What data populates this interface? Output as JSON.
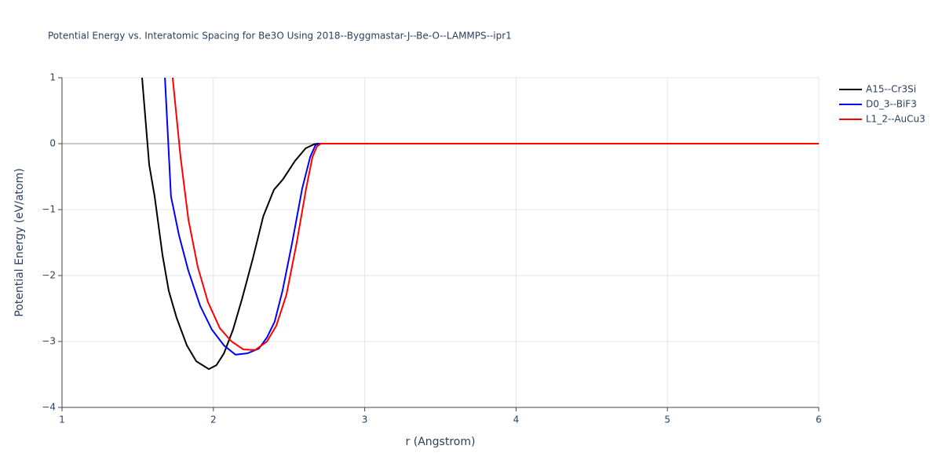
{
  "chart_data": {
    "type": "line",
    "title": "Potential Energy vs. Interatomic Spacing for Be3O Using 2018--Byggmastar-J--Be-O--LAMMPS--ipr1",
    "x_label": "r (Angstrom)",
    "y_label": "Potential Energy (eV/atom)",
    "xlim": [
      1,
      6
    ],
    "ylim": [
      -4,
      1
    ],
    "xticks": [
      1,
      2,
      3,
      4,
      5,
      6
    ],
    "yticks": [
      {
        "value": -4,
        "label": "−4"
      },
      {
        "value": -3,
        "label": "−3"
      },
      {
        "value": -2,
        "label": "−2"
      },
      {
        "value": -1,
        "label": "−1"
      },
      0,
      1
    ],
    "grid": true,
    "legend": "right",
    "series": [
      {
        "name": "A15--Cr3Si",
        "color": "#000000",
        "x": [
          1.529,
          1.576,
          1.612,
          1.664,
          1.705,
          1.757,
          1.825,
          1.887,
          1.97,
          2.02,
          2.07,
          2.13,
          2.19,
          2.26,
          2.33,
          2.4,
          2.46,
          2.54,
          2.61,
          2.665,
          2.69,
          3,
          4,
          5,
          6
        ],
        "values": [
          1.0,
          -0.32,
          -0.8,
          -1.69,
          -2.23,
          -2.64,
          -3.06,
          -3.3,
          -3.42,
          -3.36,
          -3.18,
          -2.82,
          -2.35,
          -1.75,
          -1.1,
          -0.7,
          -0.54,
          -0.26,
          -0.07,
          -0.01,
          0,
          0,
          0,
          0,
          0
        ]
      },
      {
        "name": "D0_3--BiF3",
        "color": "#0000ff",
        "x": [
          1.68,
          1.72,
          1.773,
          1.835,
          1.913,
          1.99,
          2.07,
          2.146,
          2.224,
          2.3,
          2.354,
          2.405,
          2.457,
          2.52,
          2.587,
          2.64,
          2.675,
          2.7,
          3,
          4,
          5,
          6
        ],
        "values": [
          1.0,
          -0.8,
          -1.39,
          -1.93,
          -2.46,
          -2.82,
          -3.06,
          -3.2,
          -3.18,
          -3.11,
          -2.94,
          -2.7,
          -2.23,
          -1.51,
          -0.68,
          -0.2,
          -0.02,
          0,
          0,
          0,
          0,
          0
        ]
      },
      {
        "name": "L1_2--AuCu3",
        "color": "#ff0000",
        "x": [
          1.731,
          1.783,
          1.835,
          1.897,
          1.964,
          2.043,
          2.12,
          2.198,
          2.276,
          2.354,
          2.416,
          2.483,
          2.55,
          2.613,
          2.655,
          2.685,
          2.71,
          3,
          4,
          5,
          6
        ],
        "values": [
          1.0,
          -0.2,
          -1.15,
          -1.87,
          -2.4,
          -2.8,
          -3.0,
          -3.12,
          -3.13,
          -3.0,
          -2.76,
          -2.29,
          -1.51,
          -0.68,
          -0.2,
          -0.04,
          0,
          0,
          0,
          0,
          0
        ]
      }
    ]
  }
}
